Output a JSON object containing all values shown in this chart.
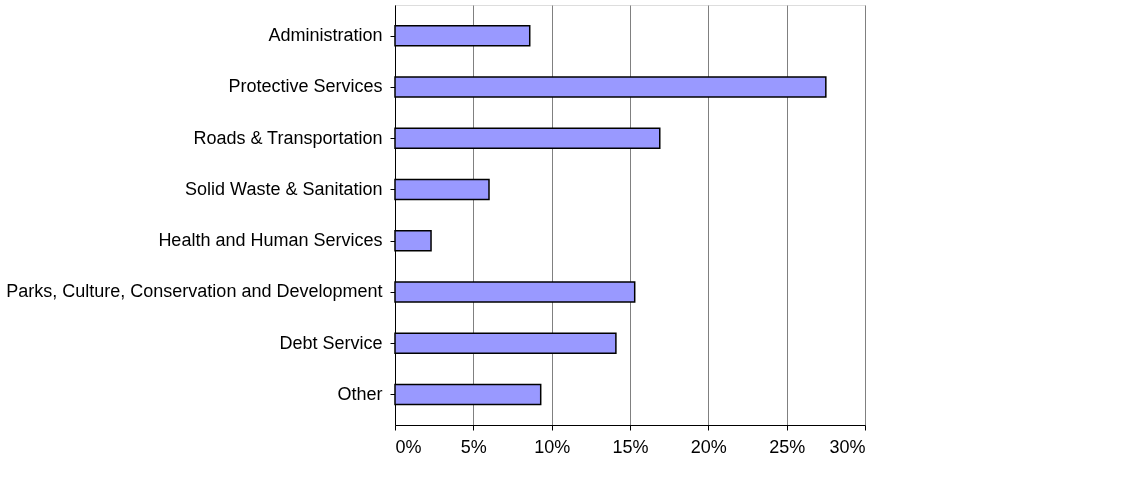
{
  "chart_data": {
    "type": "bar",
    "orientation": "horizontal",
    "categories": [
      "Administration",
      "Protective Services",
      "Roads & Transportation",
      "Solid Waste & Sanitation",
      "Health and Human Services",
      "Parks, Culture, Conservation and Development",
      "Debt Service",
      "Other"
    ],
    "values": [
      8.6,
      27.5,
      16.9,
      6.0,
      2.3,
      15.3,
      14.1,
      9.3
    ],
    "color": "#9999ff",
    "xlim": [
      0,
      30
    ],
    "xticks": [
      {
        "value": 0,
        "label": "0%"
      },
      {
        "value": 5,
        "label": "5%"
      },
      {
        "value": 10,
        "label": "10%"
      },
      {
        "value": 15,
        "label": "15%"
      },
      {
        "value": 20,
        "label": "20%"
      },
      {
        "value": 25,
        "label": "25%"
      },
      {
        "value": 30,
        "label": "30%"
      }
    ],
    "grid": "x"
  }
}
